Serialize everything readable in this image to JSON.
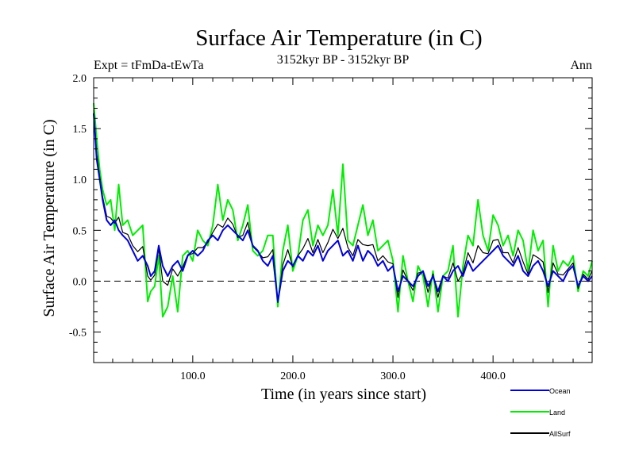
{
  "chart_data": {
    "type": "line",
    "title": "Surface Air Temperature (in C)",
    "subtitle": "3152kyr BP - 3152kyr BP",
    "left_annotation": "Expt = tFmDa-tEwTa",
    "right_annotation": "Ann",
    "xlabel": "Time (in years since start)",
    "ylabel": "Surface Air Temperature (in C)",
    "xlim": [
      1,
      499
    ],
    "ylim": [
      -0.8,
      2.0
    ],
    "xticks": [
      100,
      200,
      300,
      400
    ],
    "xtick_labels": [
      "100.0",
      "200.0",
      "300.0",
      "400.0"
    ],
    "yticks": [
      -0.5,
      0.0,
      0.5,
      1.0,
      1.5,
      2.0
    ],
    "ytick_labels": [
      "-0.5",
      "0.0",
      "0.5",
      "1.0",
      "1.5",
      "2.0"
    ],
    "reference_line": 0.0,
    "legend_position": "bottom-right, outside plot",
    "series": [
      {
        "name": "Ocean",
        "color": "#0000dd",
        "x": [
          1,
          4,
          7,
          10,
          14,
          18,
          22,
          26,
          30,
          35,
          40,
          45,
          50,
          55,
          58,
          62,
          66,
          70,
          75,
          80,
          85,
          90,
          95,
          100,
          105,
          110,
          115,
          120,
          125,
          130,
          135,
          140,
          145,
          150,
          155,
          160,
          165,
          170,
          175,
          180,
          185,
          190,
          195,
          200,
          205,
          210,
          215,
          220,
          225,
          230,
          235,
          240,
          245,
          250,
          255,
          260,
          265,
          270,
          275,
          280,
          285,
          290,
          295,
          300,
          305,
          310,
          315,
          320,
          325,
          330,
          335,
          340,
          345,
          350,
          355,
          360,
          365,
          370,
          375,
          380,
          385,
          390,
          395,
          400,
          405,
          410,
          415,
          420,
          425,
          430,
          435,
          440,
          445,
          450,
          455,
          460,
          465,
          470,
          475,
          480,
          485,
          490,
          495,
          499
        ],
        "values": [
          1.65,
          1.2,
          1.0,
          0.8,
          0.6,
          0.55,
          0.6,
          0.5,
          0.45,
          0.4,
          0.3,
          0.2,
          0.25,
          0.15,
          0.05,
          0.1,
          0.35,
          0.15,
          0.05,
          0.15,
          0.2,
          0.1,
          0.25,
          0.3,
          0.25,
          0.3,
          0.4,
          0.45,
          0.4,
          0.5,
          0.55,
          0.5,
          0.45,
          0.4,
          0.5,
          0.35,
          0.3,
          0.2,
          0.15,
          0.25,
          -0.2,
          0.1,
          0.2,
          0.15,
          0.25,
          0.2,
          0.3,
          0.25,
          0.35,
          0.2,
          0.3,
          0.35,
          0.4,
          0.25,
          0.3,
          0.2,
          0.35,
          0.2,
          0.3,
          0.25,
          0.15,
          0.2,
          0.1,
          0.15,
          -0.1,
          0.05,
          0.0,
          -0.05,
          0.05,
          0.1,
          -0.05,
          0.05,
          -0.1,
          0.05,
          0.0,
          0.1,
          0.15,
          0.05,
          0.2,
          0.1,
          0.15,
          0.2,
          0.25,
          0.3,
          0.35,
          0.25,
          0.2,
          0.15,
          0.25,
          0.1,
          0.05,
          0.15,
          0.2,
          0.1,
          -0.05,
          0.1,
          0.05,
          0.0,
          0.1,
          0.15,
          -0.05,
          0.05,
          0.0,
          0.05
        ]
      },
      {
        "name": "Land",
        "color": "#00ee00",
        "x": [
          1,
          4,
          7,
          10,
          14,
          18,
          22,
          26,
          30,
          35,
          40,
          45,
          50,
          55,
          58,
          62,
          66,
          70,
          75,
          80,
          85,
          90,
          95,
          100,
          105,
          110,
          115,
          120,
          125,
          130,
          135,
          140,
          145,
          150,
          155,
          160,
          165,
          170,
          175,
          180,
          185,
          190,
          195,
          200,
          205,
          210,
          215,
          220,
          225,
          230,
          235,
          240,
          245,
          250,
          255,
          260,
          265,
          270,
          275,
          280,
          285,
          290,
          295,
          300,
          305,
          310,
          315,
          320,
          325,
          330,
          335,
          340,
          345,
          350,
          355,
          360,
          365,
          370,
          375,
          380,
          385,
          390,
          395,
          400,
          405,
          410,
          415,
          420,
          425,
          430,
          435,
          440,
          445,
          450,
          455,
          460,
          465,
          470,
          475,
          480,
          485,
          490,
          495,
          499
        ],
        "values": [
          1.75,
          1.4,
          1.1,
          0.9,
          0.75,
          0.8,
          0.5,
          0.95,
          0.55,
          0.6,
          0.45,
          0.5,
          0.55,
          -0.2,
          -0.1,
          -0.05,
          0.25,
          -0.35,
          -0.25,
          0.05,
          -0.3,
          0.25,
          0.3,
          0.2,
          0.5,
          0.4,
          0.35,
          0.55,
          0.95,
          0.6,
          0.8,
          0.7,
          0.4,
          0.55,
          0.75,
          0.3,
          0.25,
          0.3,
          0.45,
          0.45,
          -0.25,
          0.3,
          0.55,
          0.1,
          0.25,
          0.6,
          0.7,
          0.35,
          0.55,
          0.45,
          0.55,
          0.9,
          0.45,
          1.15,
          0.4,
          0.35,
          0.55,
          0.75,
          0.45,
          0.6,
          0.3,
          0.35,
          0.4,
          0.2,
          -0.3,
          0.25,
          0.0,
          -0.2,
          0.15,
          0.05,
          -0.25,
          0.1,
          -0.3,
          0.05,
          0.1,
          0.35,
          -0.35,
          0.15,
          0.45,
          0.35,
          0.8,
          0.45,
          0.3,
          0.65,
          0.55,
          0.35,
          0.45,
          0.25,
          0.5,
          0.4,
          0.1,
          0.5,
          0.3,
          0.4,
          -0.25,
          0.35,
          0.1,
          0.2,
          0.15,
          0.25,
          -0.1,
          0.1,
          0.05,
          0.2
        ]
      },
      {
        "name": "AllSurf",
        "color": "#000000",
        "x": [
          1,
          4,
          7,
          10,
          14,
          18,
          22,
          26,
          30,
          35,
          40,
          45,
          50,
          55,
          58,
          62,
          66,
          70,
          75,
          80,
          85,
          90,
          95,
          100,
          105,
          110,
          115,
          120,
          125,
          130,
          135,
          140,
          145,
          150,
          155,
          160,
          165,
          170,
          175,
          180,
          185,
          190,
          195,
          200,
          205,
          210,
          215,
          220,
          225,
          230,
          235,
          240,
          245,
          250,
          255,
          260,
          265,
          270,
          275,
          280,
          285,
          290,
          295,
          300,
          305,
          310,
          315,
          320,
          325,
          330,
          335,
          340,
          345,
          350,
          355,
          360,
          365,
          370,
          375,
          380,
          385,
          390,
          395,
          400,
          405,
          410,
          415,
          420,
          425,
          430,
          435,
          440,
          445,
          450,
          455,
          460,
          465,
          470,
          475,
          480,
          485,
          490,
          495,
          499
        ],
        "values": [
          1.68,
          1.26,
          1.03,
          0.83,
          0.64,
          0.62,
          0.57,
          0.63,
          0.48,
          0.46,
          0.35,
          0.29,
          0.34,
          0.05,
          0.01,
          0.06,
          0.32,
          0.0,
          -0.04,
          0.12,
          0.05,
          0.14,
          0.26,
          0.27,
          0.33,
          0.33,
          0.38,
          0.48,
          0.56,
          0.53,
          0.62,
          0.56,
          0.43,
          0.45,
          0.58,
          0.34,
          0.29,
          0.23,
          0.24,
          0.31,
          -0.21,
          0.16,
          0.31,
          0.14,
          0.25,
          0.32,
          0.42,
          0.28,
          0.41,
          0.28,
          0.38,
          0.51,
          0.42,
          0.52,
          0.33,
          0.25,
          0.41,
          0.36,
          0.35,
          0.36,
          0.2,
          0.25,
          0.19,
          0.17,
          -0.16,
          0.11,
          0.0,
          -0.09,
          0.08,
          0.09,
          -0.11,
          0.07,
          -0.16,
          0.05,
          0.03,
          0.18,
          0.0,
          0.08,
          0.28,
          0.18,
          0.35,
          0.28,
          0.27,
          0.4,
          0.41,
          0.28,
          0.28,
          0.18,
          0.33,
          0.19,
          0.07,
          0.26,
          0.23,
          0.19,
          -0.11,
          0.18,
          0.07,
          0.06,
          0.12,
          0.18,
          -0.07,
          0.07,
          0.02,
          0.1
        ]
      }
    ]
  }
}
